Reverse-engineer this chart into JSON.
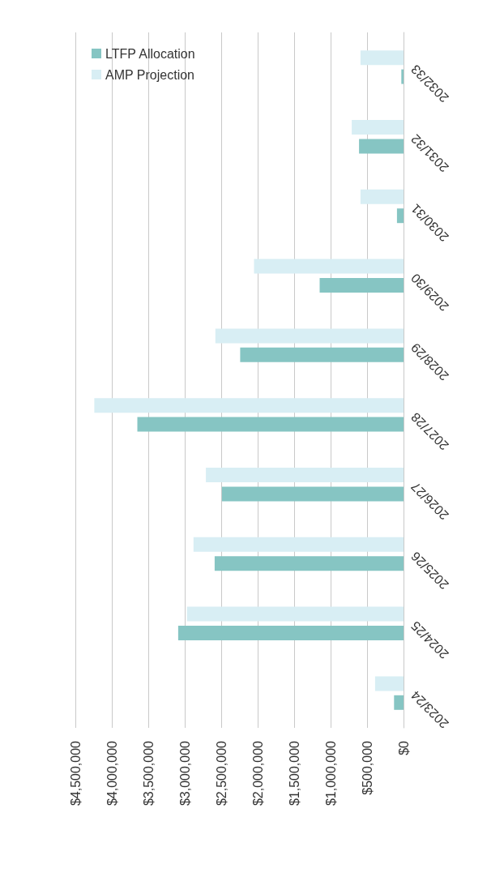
{
  "chart_data": {
    "type": "bar",
    "orientation": "horizontal",
    "categories": [
      "2032/33",
      "2031/32",
      "2030/31",
      "2029/30",
      "2028/29",
      "2027/28",
      "2026/27",
      "2025/26",
      "2024/25",
      "2023/24"
    ],
    "series": [
      {
        "name": "AMP Projection",
        "color": "#d8eef4",
        "values": [
          590000,
          710000,
          590000,
          2050000,
          2580000,
          4240000,
          2710000,
          2880000,
          2970000,
          390000
        ]
      },
      {
        "name": "LTFP Allocation",
        "color": "#86c5c3",
        "values": [
          30000,
          610000,
          90000,
          1150000,
          2240000,
          3650000,
          2490000,
          2590000,
          3090000,
          130000
        ]
      }
    ],
    "xlim": [
      4500000,
      0
    ],
    "xticks": [
      {
        "value": 0,
        "label": "$0"
      },
      {
        "value": 500000,
        "label": "$500,000"
      },
      {
        "value": 1000000,
        "label": "$1,000,000"
      },
      {
        "value": 1500000,
        "label": "$1,500,000"
      },
      {
        "value": 2000000,
        "label": "$2,000,000"
      },
      {
        "value": 2500000,
        "label": "$2,500,000"
      },
      {
        "value": 3000000,
        "label": "$3,000,000"
      },
      {
        "value": 3500000,
        "label": "$3,500,000"
      },
      {
        "value": 4000000,
        "label": "$4,000,000"
      },
      {
        "value": 4500000,
        "label": "$4,500,000"
      }
    ],
    "grid": "x",
    "legend": "top left"
  }
}
